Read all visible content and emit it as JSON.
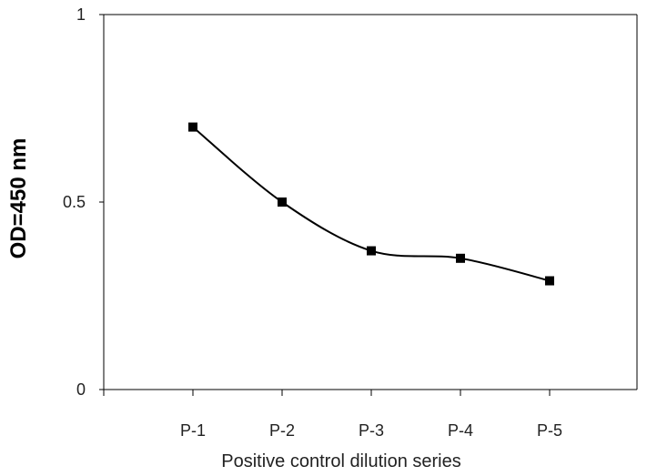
{
  "chart_data": {
    "type": "line",
    "categories": [
      "P-1",
      "P-2",
      "P-3",
      "P-4",
      "P-5"
    ],
    "series": [
      {
        "values": [
          0.7,
          0.5,
          0.37,
          0.35,
          0.29
        ]
      }
    ],
    "xlabel": "Positive control dilution series",
    "ylabel": "OD=450 nm",
    "ylim": [
      0,
      1
    ],
    "yticks": [
      0,
      0.5,
      1
    ],
    "ytick_labels": [
      "0",
      "0.5",
      "1"
    ],
    "grid": false,
    "marker": "square",
    "smooth": true,
    "line_color": "#000000"
  }
}
